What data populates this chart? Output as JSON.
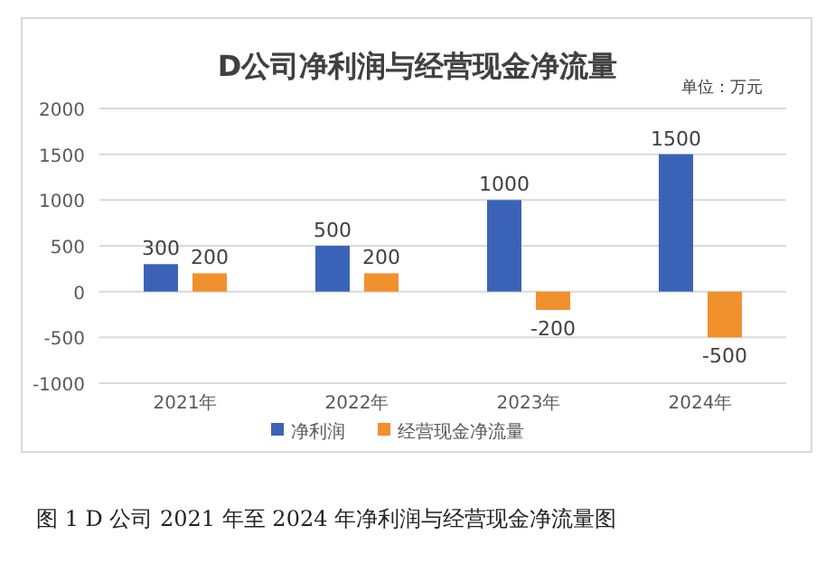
{
  "chart_data": {
    "type": "bar",
    "title": "D公司净利润与经营现金净流量",
    "categories": [
      "2021年",
      "2022年",
      "2023年",
      "2024年"
    ],
    "series": [
      {
        "name": "净利润",
        "color": "#3a63b8",
        "values": [
          300,
          500,
          1000,
          1500
        ]
      },
      {
        "name": "经营现金净流量",
        "color": "#f0912e",
        "values": [
          200,
          200,
          -200,
          -500
        ]
      }
    ],
    "ylim": [
      -1000,
      2000
    ],
    "yticks": [
      -1000,
      -500,
      0,
      500,
      1000,
      1500,
      2000
    ],
    "grid": "y",
    "legend": "bottom",
    "data_labels": true,
    "annotations": [
      "单位：万元",
      "图 1 D 公司 2021 年至 2024 年净利润与经营现金净流量图"
    ]
  }
}
